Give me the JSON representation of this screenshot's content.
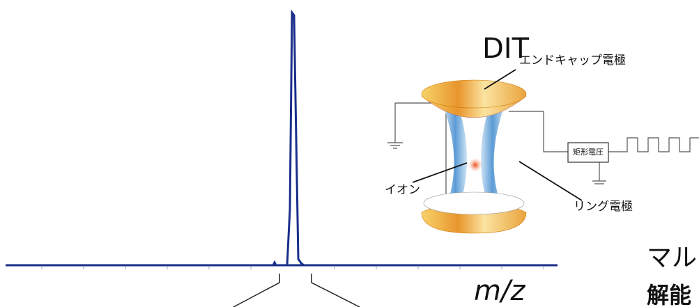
{
  "title": "DIT",
  "labels": {
    "endcap": "エンドキャップ電極",
    "voltage": "矩形電圧",
    "ion": "イオン",
    "ring": "リング電極"
  },
  "axis_label": "m/z",
  "side_text": [
    "マル",
    "解能"
  ]
}
